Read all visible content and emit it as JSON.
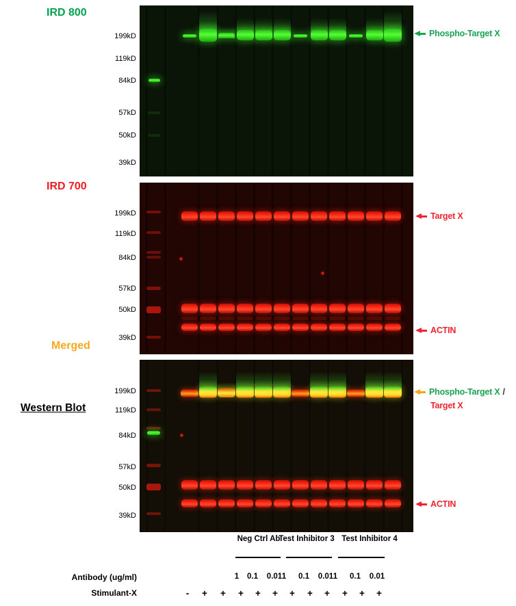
{
  "figure_title": "Western Blot",
  "mw_ladder": [
    "199kD",
    "119kD",
    "84kD",
    "57kD",
    "50kD",
    "39kD"
  ],
  "colors": {
    "ird800_title": "#00a44f",
    "ird700_title": "#f01d24",
    "merged_title": "#f5a81f",
    "phospho_label_green": "#1ba351",
    "red_label": "#ee2430",
    "orange_arrow": "#f2a71d",
    "green_band": "#55ff33",
    "red_band": "#ff2e1a",
    "yellow_band": "#ffe93c"
  },
  "panels": {
    "ird800": {
      "title": "IRD 800",
      "annotation": "Phospho-Target X"
    },
    "ird700": {
      "title": "IRD 700",
      "annotation_target": "Target X",
      "annotation_actin": "ACTIN"
    },
    "merged": {
      "title": "Merged",
      "annotation_line1_phospho": "Phospho-Target X",
      "annotation_line1_separator": "/",
      "annotation_line2": "Target X",
      "annotation_actin": "ACTIN"
    }
  },
  "blot_data": {
    "lane_count": 12,
    "marker_lane": "molecular-weight ladder",
    "ird800_phospho_intensity": [
      "weak",
      "vstrong",
      "medium",
      "strong",
      "strong",
      "strong",
      "weak",
      "strong",
      "strong",
      "weak",
      "strong",
      "vstrong"
    ],
    "ird700_bands": {
      "target_x": "present in all 12 lanes",
      "band_50kd": "present in all 12 lanes",
      "actin": "present in all 12 lanes"
    },
    "merged_phospho_level": [
      "low",
      "high",
      "mid",
      "high",
      "high",
      "high",
      "low",
      "high",
      "high",
      "low",
      "high",
      "high"
    ],
    "ladder_bands_ird800": [
      "84kD green"
    ],
    "ladder_bands_ird700": [
      "199kD",
      "119kD",
      "84kD",
      "57kD",
      "50kD",
      "39kD"
    ],
    "ladder_bands_merged": [
      "199kD red",
      "119kD red",
      "84kD red + green",
      "57kD red",
      "50kD red",
      "39kD red"
    ]
  },
  "treatments": {
    "group_header": [
      "Neg Ctrl Ab",
      "Test Inhibitor 3",
      "Test Inhibitor 4"
    ],
    "antibody_row_label": "Antibody (ug/ml)",
    "antibody_doses": [
      "1",
      "0.1",
      "0.01",
      "1",
      "0.1",
      "0.01",
      "1",
      "0.1",
      "0.01"
    ],
    "stimulant_row_label": "Stimulant-X",
    "stimulant": [
      "-",
      "+",
      "+",
      "+",
      "+",
      "+",
      "+",
      "+",
      "+",
      "+",
      "+",
      "+"
    ]
  }
}
